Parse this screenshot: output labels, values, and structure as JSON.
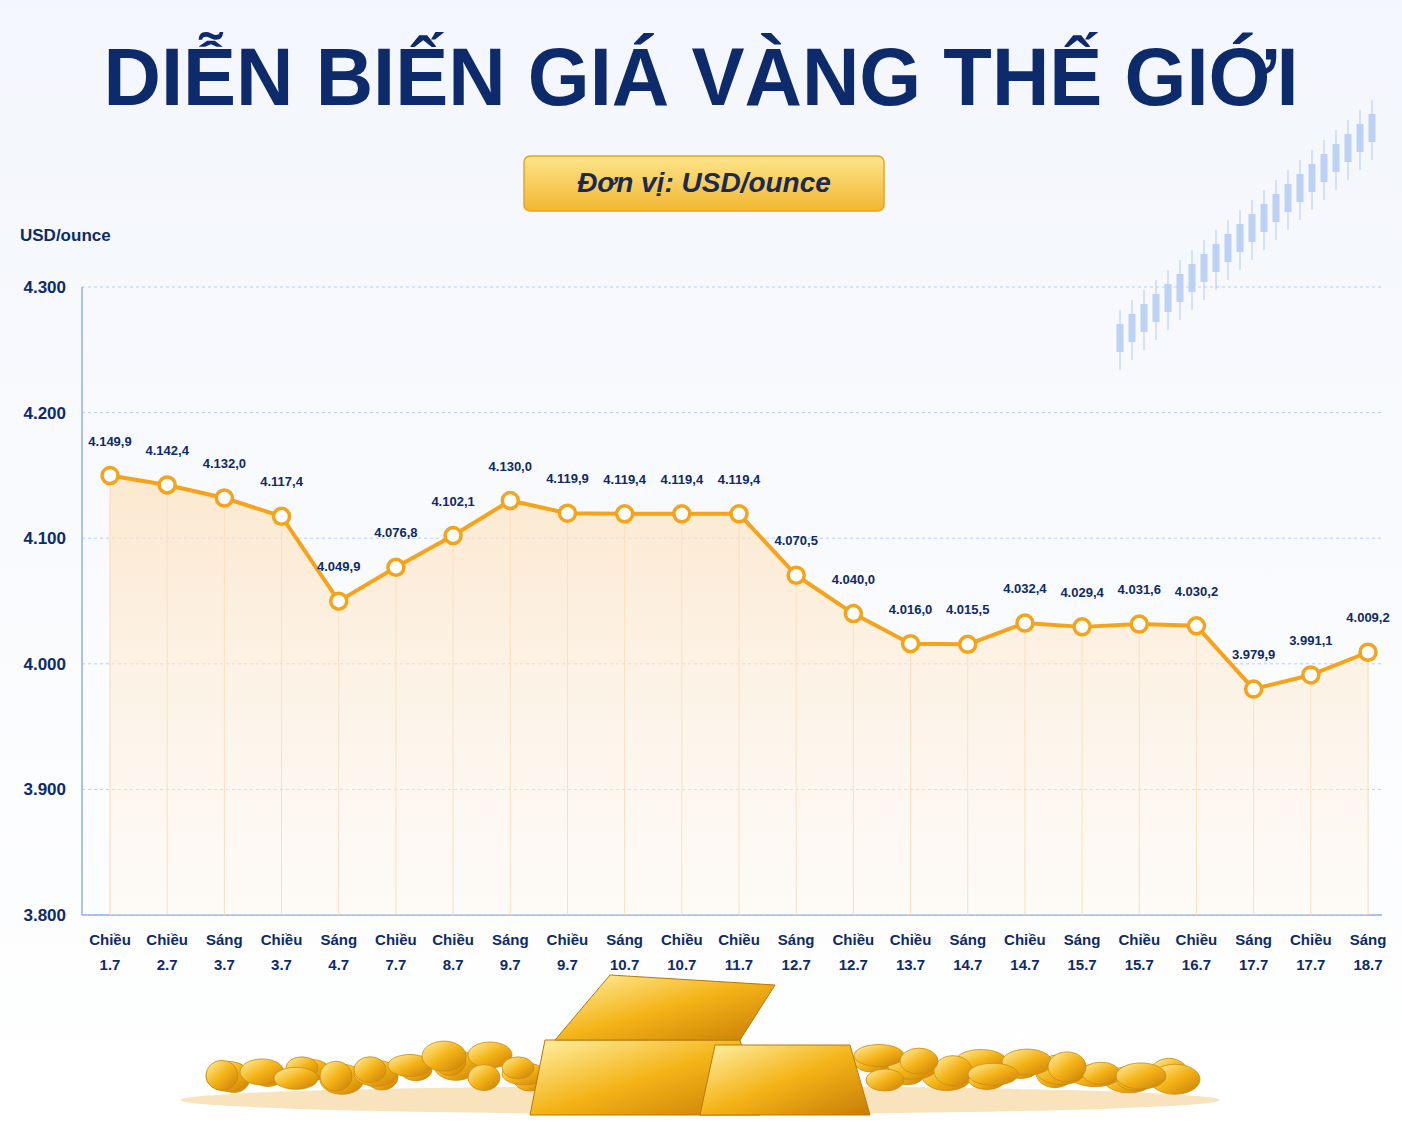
{
  "chart_data": {
    "type": "line",
    "title": "DIỄN BIẾN GIÁ VÀNG THẾ GIỚI",
    "subtitle": "Đơn vị: USD/ounce",
    "y_label": "USD/ounce",
    "categories": [
      "Chiều 1.7",
      "Chiều 2.7",
      "Sáng 3.7",
      "Chiều 3.7",
      "Sáng 4.7",
      "Chiều 7.7",
      "Chiều 8.7",
      "Sáng 9.7",
      "Chiều 9.7",
      "Sáng 10.7",
      "Chiều 10.7",
      "Chiều 11.7",
      "Sáng 12.7",
      "Chiều 12.7",
      "Chiều 13.7",
      "Sáng 14.7",
      "Chiều 14.7",
      "Sáng 15.7",
      "Chiều 15.7",
      "Chiều 16.7",
      "Sáng 17.7",
      "Chiều 17.7",
      "Sáng 18.7"
    ],
    "values": [
      4149.9,
      4142.4,
      4132.0,
      4117.4,
      4049.9,
      4076.8,
      4102.1,
      4130.0,
      4119.9,
      4119.4,
      4119.4,
      4119.4,
      4070.5,
      4040.0,
      4016.0,
      4015.5,
      4032.4,
      4029.4,
      4031.6,
      4030.2,
      3979.9,
      3991.1,
      4009.2
    ],
    "value_labels": [
      "4.149,9",
      "4.142,4",
      "4.132,0",
      "4.117,4",
      "4.049,9",
      "4.076,8",
      "4.102,1",
      "4.130,0",
      "4.119,9",
      "4.119,4",
      "4.119,4",
      "4.119,4",
      "4.070,5",
      "4.040,0",
      "4.016,0",
      "4.015,5",
      "4.032,4",
      "4.029,4",
      "4.031,6",
      "4.030,2",
      "3.979,9",
      "3.991,1",
      "4.009,2"
    ],
    "color": "#f5a31a",
    "marker": "circle",
    "data_labels": true,
    "grid": true,
    "ylim": [
      3800,
      4300
    ],
    "yticks": [
      {
        "value": 3800,
        "label": "3.800"
      },
      {
        "value": 3900,
        "label": "3.900"
      },
      {
        "value": 4000,
        "label": "4.000"
      },
      {
        "value": 4100,
        "label": "4.100"
      },
      {
        "value": 4200,
        "label": "4.200"
      },
      {
        "value": 4300,
        "label": "4.300"
      }
    ]
  }
}
